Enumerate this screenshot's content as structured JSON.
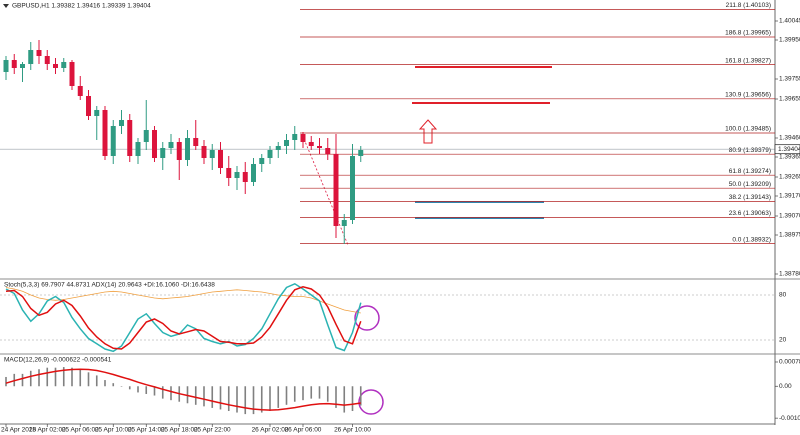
{
  "chart_data": [
    {
      "type": "candlestick",
      "title": "GBPUSD,H1 1.39382 1.39416 1.39339 1.39404",
      "categories": [
        "24 Apr 2018",
        null,
        null,
        null,
        null,
        "25 Apr 02:00",
        null,
        null,
        null,
        "25 Apr 06:00",
        null,
        null,
        null,
        "25 Apr 10:00",
        null,
        null,
        null,
        "25 Apr 14:00",
        null,
        null,
        null,
        "25 Apr 18:00",
        null,
        null,
        null,
        "25 Apr 22:00",
        null,
        null,
        null,
        null,
        null,
        null,
        "26 Apr 02:00",
        null,
        null,
        null,
        "26 Apr 06:00",
        null,
        null,
        null,
        null,
        null,
        "26 Apr 10:00",
        null
      ],
      "open": [
        1.3979,
        1.3985,
        1.3981,
        1.3983,
        1.399,
        1.3987,
        1.3983,
        1.3981,
        1.3984,
        1.3972,
        1.3967,
        1.3957,
        1.396,
        1.3937,
        1.3952,
        1.3955,
        1.3937,
        1.3944,
        1.395,
        1.3936,
        1.3941,
        1.3944,
        1.3935,
        1.3946,
        1.3942,
        1.3936,
        1.394,
        1.3931,
        1.3926,
        1.3929,
        1.3924,
        1.3933,
        1.3936,
        1.394,
        1.3942,
        1.3945,
        1.3948,
        1.3944,
        1.3942,
        1.3941,
        1.3938,
        1.3902,
        1.3905,
        1.3937
      ],
      "high": [
        1.3987,
        1.3988,
        1.3984,
        1.3994,
        1.3995,
        1.399,
        1.3986,
        1.3986,
        1.3985,
        1.3977,
        1.397,
        1.3962,
        1.3962,
        1.3955,
        1.396,
        1.3958,
        1.3946,
        1.3965,
        1.3952,
        1.3944,
        1.3948,
        1.3946,
        1.395,
        1.3955,
        1.3945,
        1.3943,
        1.3944,
        1.3937,
        1.3932,
        1.3934,
        1.3936,
        1.3938,
        1.3942,
        1.3944,
        1.3948,
        1.3952,
        1.3949,
        1.3947,
        1.3946,
        1.3946,
        1.3948,
        1.3908,
        1.3943,
        1.3942
      ],
      "low": [
        1.3975,
        1.3978,
        1.3974,
        1.398,
        1.3983,
        1.398,
        1.3978,
        1.3979,
        1.397,
        1.3965,
        1.3955,
        1.3945,
        1.3935,
        1.3933,
        1.3948,
        1.3934,
        1.3933,
        1.394,
        1.3934,
        1.393,
        1.3938,
        1.3925,
        1.3932,
        1.394,
        1.3933,
        1.393,
        1.3928,
        1.3922,
        1.392,
        1.3918,
        1.3922,
        1.3929,
        1.3933,
        1.3936,
        1.3938,
        1.394,
        1.3941,
        1.394,
        1.3938,
        1.3935,
        1.3896,
        1.3893,
        1.3903,
        1.3934
      ],
      "close": [
        1.3985,
        1.3981,
        1.3983,
        1.399,
        1.3987,
        1.3983,
        1.3981,
        1.3984,
        1.3972,
        1.3967,
        1.3957,
        1.396,
        1.3937,
        1.3952,
        1.3955,
        1.3937,
        1.3944,
        1.395,
        1.3936,
        1.3941,
        1.3944,
        1.3935,
        1.3946,
        1.3942,
        1.3936,
        1.394,
        1.3931,
        1.3926,
        1.3929,
        1.3924,
        1.3933,
        1.3936,
        1.394,
        1.3942,
        1.3945,
        1.3948,
        1.3944,
        1.3942,
        1.3941,
        1.3938,
        1.3902,
        1.3905,
        1.3937,
        1.394
      ],
      "up_color": "#2f9b82",
      "down_color": "#dc143c",
      "ylim": [
        1.3876,
        1.4015
      ],
      "yticks": [
        1.40045,
        {
          "value": 1.3995,
          "label": "1.39950"
        },
        1.39755,
        1.39655,
        {
          "value": 1.3946,
          "label": "1.39460"
        },
        1.39365,
        1.39265,
        {
          "value": 1.3917,
          "label": "1.39170"
        },
        {
          "value": 1.3907,
          "label": "1.39070"
        },
        1.38975,
        {
          "value": 1.3878,
          "label": "1.38780"
        }
      ],
      "last_price": 1.39404,
      "fib_levels": [
        {
          "value": 1.40103,
          "label": "211.8 (1.40103)"
        },
        {
          "value": 1.39965,
          "label": "186.8 (1.39965)"
        },
        {
          "value": 1.39827,
          "label": "161.8 (1.39827)"
        },
        {
          "value": 1.39656,
          "label": "130.9 (1.39656)"
        },
        {
          "value": 1.39485,
          "label": "100.0 (1.39485)"
        },
        {
          "value": 1.39379,
          "label": "80.9 (1.39379)"
        },
        {
          "value": 1.39274,
          "label": "61.8 (1.39274)"
        },
        {
          "value": 1.39209,
          "label": "50.0 (1.39209)"
        },
        {
          "value": 1.39143,
          "label": "38.2 (1.39143)"
        },
        {
          "value": 1.39063,
          "label": "23.6 (1.39063)"
        },
        {
          "value": 1.38932,
          "label": "0.0 (1.38932)"
        }
      ],
      "fib_color": "#b22222"
    },
    {
      "type": "line",
      "title": "Stoch(5,3,3) 69.7907 44.8731 ADX(14) 20.9643 +DI:16.1060 -DI:16.6438",
      "ylim": [
        0,
        100
      ],
      "yticks": [
        20,
        80
      ],
      "series": [
        {
          "color": "#f0a040",
          "values": [
            90,
            88,
            85,
            80,
            76,
            74,
            73,
            74,
            76,
            78,
            80,
            82,
            84,
            85,
            84,
            82,
            80,
            78,
            76,
            75,
            76,
            77,
            78,
            80,
            82,
            84,
            85,
            86,
            87,
            86,
            85,
            84,
            82,
            80,
            79,
            78,
            78,
            76,
            72,
            68,
            64,
            60,
            58,
            56
          ]
        },
        {
          "color": "#2bb3b3",
          "values": [
            88,
            82,
            60,
            45,
            55,
            72,
            78,
            70,
            50,
            35,
            22,
            15,
            8,
            5,
            12,
            30,
            48,
            55,
            42,
            30,
            25,
            28,
            40,
            35,
            22,
            18,
            15,
            18,
            12,
            14,
            22,
            35,
            55,
            75,
            90,
            95,
            88,
            80,
            72,
            40,
            10,
            6,
            30,
            69.7907
          ]
        },
        {
          "color": "#e01010",
          "values": [
            85,
            86,
            78,
            62,
            53,
            57,
            68,
            73,
            66,
            52,
            36,
            24,
            15,
            9,
            8,
            16,
            30,
            44,
            48,
            42,
            32,
            28,
            31,
            34,
            32,
            25,
            18,
            17,
            15,
            15,
            16,
            24,
            37,
            55,
            73,
            87,
            91,
            88,
            80,
            64,
            41,
            19,
            15,
            44.8731
          ]
        }
      ]
    },
    {
      "type": "macd",
      "title": "MACD(12,26,9) -0.000622 -0.000541",
      "ylim": [
        -0.00122,
        0.00101
      ],
      "yticks": [
        0.000784,
        {
          "value": 0,
          "label": "0.00"
        },
        -0.001031
      ],
      "color": "#808080",
      "values": [
        0.0003,
        0.0004,
        0.0004,
        0.0005,
        0.00055,
        0.0006,
        0.0006,
        0.00062,
        0.0006,
        0.00055,
        0.00045,
        0.00035,
        0.0002,
        0.0001,
        0,
        -0.0001,
        -0.0002,
        -0.00025,
        -0.0003,
        -0.0004,
        -0.00045,
        -0.0005,
        -0.00055,
        -0.0006,
        -0.00065,
        -0.0007,
        -0.00075,
        -0.0008,
        -0.00085,
        -0.0009,
        -0.0009,
        -0.00085,
        -0.0008,
        -0.0007,
        -0.0006,
        -0.0005,
        -0.00045,
        -0.0004,
        -0.0004,
        -0.0005,
        -0.0007,
        -0.00085,
        -0.0008,
        -0.000622
      ],
      "signal": {
        "color": "#e01010",
        "values": [
          0.0001,
          0.00018,
          0.00025,
          0.00032,
          0.00038,
          0.00043,
          0.00048,
          0.00052,
          0.00054,
          0.00055,
          0.00054,
          0.00051,
          0.00045,
          0.00038,
          0.0003,
          0.00022,
          0.00013,
          5e-05,
          -2e-05,
          -0.0001,
          -0.00017,
          -0.00024,
          -0.0003,
          -0.00036,
          -0.00042,
          -0.00048,
          -0.00054,
          -0.0006,
          -0.00065,
          -0.0007,
          -0.00074,
          -0.00076,
          -0.00077,
          -0.00076,
          -0.00073,
          -0.00069,
          -0.00064,
          -0.0006,
          -0.00057,
          -0.00056,
          -0.00058,
          -0.00061,
          -0.00058,
          -0.000541
        ]
      }
    }
  ]
}
